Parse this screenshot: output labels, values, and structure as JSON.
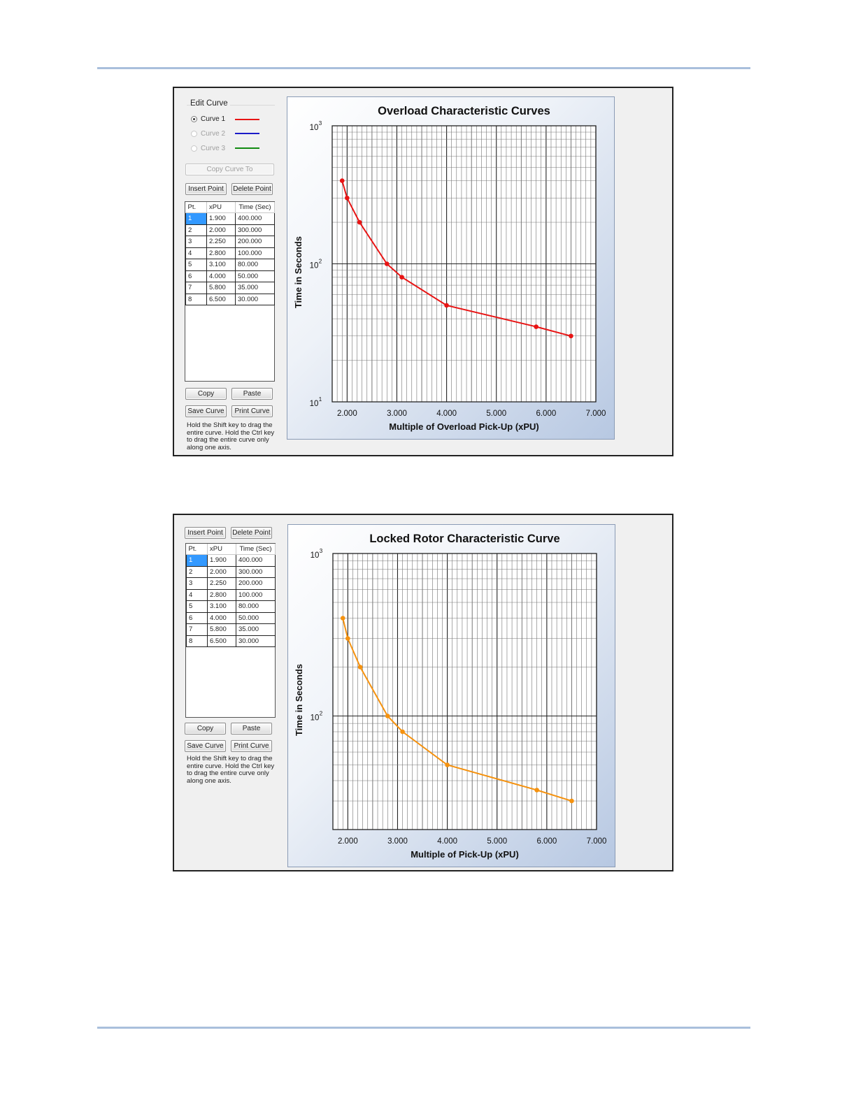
{
  "overload_panel": {
    "edit_curve_label": "Edit Curve",
    "curves": [
      {
        "label": "Curve 1",
        "color": "#e81414",
        "selected": true
      },
      {
        "label": "Curve 2",
        "color": "#1b1bc8",
        "selected": false
      },
      {
        "label": "Curve 3",
        "color": "#118a11",
        "selected": false
      }
    ],
    "copy_curve_to_label": "Copy Curve To",
    "insert_point_label": "Insert Point",
    "delete_point_label": "Delete Point",
    "table_headers": [
      "Pt.",
      "xPU",
      "Time (Sec)"
    ],
    "rows": [
      [
        "1",
        "1.900",
        "400.000"
      ],
      [
        "2",
        "2.000",
        "300.000"
      ],
      [
        "3",
        "2.250",
        "200.000"
      ],
      [
        "4",
        "2.800",
        "100.000"
      ],
      [
        "5",
        "3.100",
        "80.000"
      ],
      [
        "6",
        "4.000",
        "50.000"
      ],
      [
        "7",
        "5.800",
        "35.000"
      ],
      [
        "8",
        "6.500",
        "30.000"
      ]
    ],
    "copy_label": "Copy",
    "paste_label": "Paste",
    "save_curve_label": "Save Curve",
    "print_curve_label": "Print Curve",
    "hint": "Hold the Shift key to drag the entire curve.  Hold the Ctrl key to drag the entire curve only along one axis."
  },
  "locked_rotor_panel": {
    "insert_point_label": "Insert Point",
    "delete_point_label": "Delete Point",
    "table_headers": [
      "Pt.",
      "xPU",
      "Time (Sec)"
    ],
    "rows": [
      [
        "1",
        "1.900",
        "400.000"
      ],
      [
        "2",
        "2.000",
        "300.000"
      ],
      [
        "3",
        "2.250",
        "200.000"
      ],
      [
        "4",
        "2.800",
        "100.000"
      ],
      [
        "5",
        "3.100",
        "80.000"
      ],
      [
        "6",
        "4.000",
        "50.000"
      ],
      [
        "7",
        "5.800",
        "35.000"
      ],
      [
        "8",
        "6.500",
        "30.000"
      ]
    ],
    "copy_label": "Copy",
    "paste_label": "Paste",
    "save_curve_label": "Save Curve",
    "print_curve_label": "Print Curve",
    "hint": "Hold the Shift key to drag the entire curve.  Hold the Ctrl key to drag the entire curve only along one axis."
  },
  "chart_data": [
    {
      "type": "line",
      "title": "Overload Characteristic Curves",
      "xlabel": "Multiple of Overload Pick-Up (xPU)",
      "ylabel": "Time in Seconds",
      "y_scale": "log",
      "xlim": [
        1.7,
        7.0
      ],
      "ylim": [
        10,
        1000
      ],
      "xticks": [
        "2.000",
        "3.000",
        "4.000",
        "5.000",
        "6.000",
        "7.000"
      ],
      "yticks": [
        {
          "base": "10",
          "exp": "1"
        },
        {
          "base": "10",
          "exp": "2"
        },
        {
          "base": "10",
          "exp": "3"
        }
      ],
      "grid": true,
      "series": [
        {
          "color": "#e81414",
          "x": [
            1.9,
            2.0,
            2.25,
            2.8,
            3.1,
            4.0,
            5.8,
            6.5
          ],
          "y": [
            400,
            300,
            200,
            100,
            80,
            50,
            35,
            30
          ]
        }
      ]
    },
    {
      "type": "line",
      "title": "Locked Rotor Characteristic Curve",
      "xlabel": "Multiple of Pick-Up (xPU)",
      "ylabel": "Time in Seconds",
      "y_scale": "log",
      "xlim": [
        1.7,
        7.0
      ],
      "ylim": [
        20,
        1000
      ],
      "xticks": [
        "2.000",
        "3.000",
        "4.000",
        "5.000",
        "6.000",
        "7.000"
      ],
      "yticks": [
        {
          "base": "10",
          "exp": "2"
        },
        {
          "base": "10",
          "exp": "3"
        }
      ],
      "grid": true,
      "series": [
        {
          "color": "#f5920f",
          "x": [
            1.9,
            2.0,
            2.25,
            2.8,
            3.1,
            4.0,
            5.8,
            6.5
          ],
          "y": [
            400,
            300,
            200,
            100,
            80,
            50,
            35,
            30
          ]
        }
      ]
    }
  ]
}
